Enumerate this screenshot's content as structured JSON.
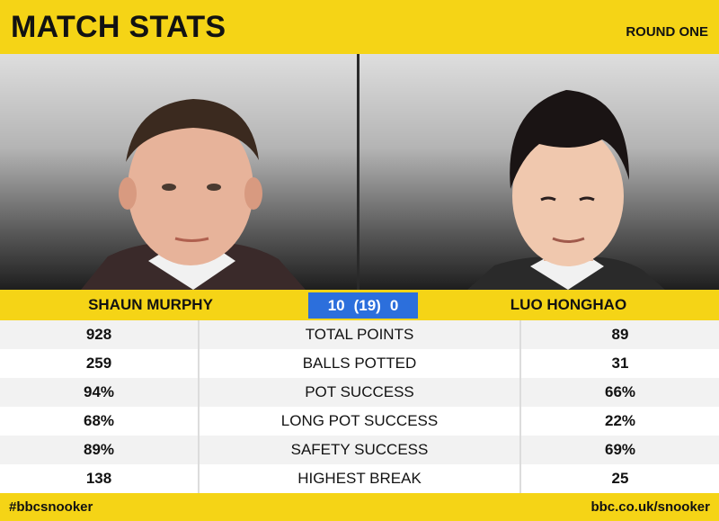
{
  "header": {
    "title": "MATCH STATS",
    "round": "ROUND ONE"
  },
  "players": {
    "left": {
      "name": "SHAUN MURPHY"
    },
    "right": {
      "name": "LUO HONGHAO"
    }
  },
  "score": {
    "left": "10",
    "frames": "(19)",
    "right": "0"
  },
  "stats": [
    {
      "left": "928",
      "label": "TOTAL POINTS",
      "right": "89"
    },
    {
      "left": "259",
      "label": "BALLS POTTED",
      "right": "31"
    },
    {
      "left": "94%",
      "label": "POT SUCCESS",
      "right": "66%"
    },
    {
      "left": "68%",
      "label": "LONG POT SUCCESS",
      "right": "22%"
    },
    {
      "left": "89%",
      "label": "SAFETY SUCCESS",
      "right": "69%"
    },
    {
      "left": "138",
      "label": "HIGHEST BREAK",
      "right": "25"
    }
  ],
  "footer": {
    "hashtag": "#bbcsnooker",
    "url": "bbc.co.uk/snooker"
  },
  "colors": {
    "accent_yellow": "#f5d416",
    "score_blue": "#2c6fdc"
  }
}
